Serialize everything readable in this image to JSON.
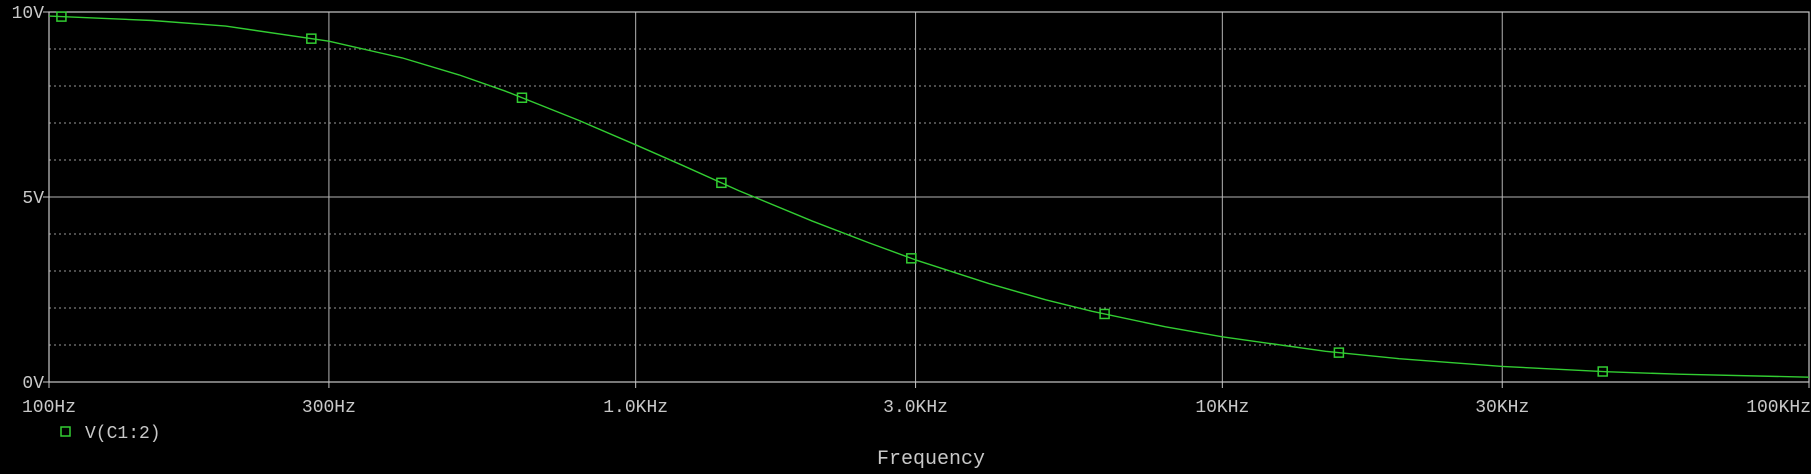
{
  "chart_data": {
    "type": "line",
    "title": "",
    "xlabel": "Frequency",
    "ylabel": "",
    "x_scale": "log",
    "xlim": [
      100,
      100000
    ],
    "ylim": [
      0,
      10
    ],
    "grid": true,
    "legend_position": "bottom-left",
    "x_ticks": [
      {
        "value": 100,
        "label": "100Hz"
      },
      {
        "value": 300,
        "label": "300Hz"
      },
      {
        "value": 1000,
        "label": "1.0KHz"
      },
      {
        "value": 3000,
        "label": "3.0KHz"
      },
      {
        "value": 10000,
        "label": "10KHz"
      },
      {
        "value": 30000,
        "label": "30KHz"
      },
      {
        "value": 100000,
        "label": "100KHz"
      }
    ],
    "y_ticks": [
      {
        "value": 0,
        "label": "0V"
      },
      {
        "value": 5,
        "label": "5V"
      },
      {
        "value": 10,
        "label": "10V"
      }
    ],
    "series": [
      {
        "name": "V(C1:2)",
        "color": "#32cd32",
        "marker": "square",
        "x": [
          100,
          150,
          200,
          300,
          400,
          500,
          600,
          800,
          1000,
          1200,
          1500,
          2000,
          2500,
          3000,
          4000,
          5000,
          6000,
          8000,
          10000,
          15000,
          20000,
          30000,
          45000,
          60000,
          100000
        ],
        "values": [
          9.89,
          9.77,
          9.62,
          9.21,
          8.76,
          8.3,
          7.86,
          7.07,
          6.41,
          5.86,
          5.17,
          4.35,
          3.76,
          3.3,
          2.66,
          2.22,
          1.91,
          1.49,
          1.22,
          0.83,
          0.63,
          0.42,
          0.28,
          0.21,
          0.13
        ],
        "marker_x": [
          105,
          280,
          640,
          1400,
          2950,
          6300,
          15800,
          44500
        ]
      }
    ]
  }
}
